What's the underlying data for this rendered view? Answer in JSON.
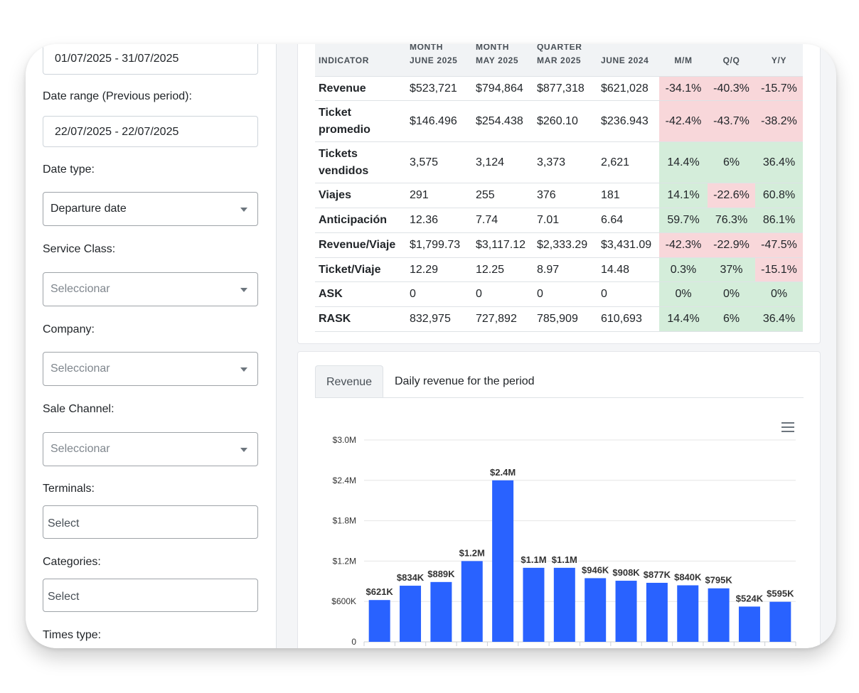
{
  "filters": {
    "current_range_value": "01/07/2025 - 31/07/2025",
    "previous_range_label": "Date range (Previous period):",
    "previous_range_value": "22/07/2025 - 22/07/2025",
    "date_type_label": "Date type:",
    "date_type_value": "Departure date",
    "service_class_label": "Service Class:",
    "service_class_placeholder": "Seleccionar",
    "company_label": "Company:",
    "company_placeholder": "Seleccionar",
    "sale_channel_label": "Sale Channel:",
    "sale_channel_placeholder": "Seleccionar",
    "terminals_label": "Terminals:",
    "terminals_placeholder": "Select",
    "categories_label": "Categories:",
    "categories_placeholder": "Select",
    "times_type_label": "Times type:"
  },
  "kpi_table": {
    "headers": [
      [
        "INDICATOR"
      ],
      [
        "MONTH",
        "JUNE 2025"
      ],
      [
        "MONTH",
        "MAY 2025"
      ],
      [
        "QUARTER",
        "MAR 2025"
      ],
      [
        "JUNE 2024"
      ],
      [
        "M/M"
      ],
      [
        "Q/Q"
      ],
      [
        "Y/Y"
      ]
    ],
    "rows": [
      {
        "indicator": "Revenue",
        "values": [
          "$523,721",
          "$794,864",
          "$877,318",
          "$621,028"
        ],
        "changes": [
          "-34.1%",
          "-40.3%",
          "-15.7%"
        ],
        "status": [
          "neg",
          "neg",
          "neg"
        ]
      },
      {
        "indicator": "Ticket promedio",
        "values": [
          "$146.496",
          "$254.438",
          "$260.10",
          "$236.943"
        ],
        "changes": [
          "-42.4%",
          "-43.7%",
          "-38.2%"
        ],
        "status": [
          "neg",
          "neg",
          "neg"
        ]
      },
      {
        "indicator": "Tickets vendidos",
        "values": [
          "3,575",
          "3,124",
          "3,373",
          "2,621"
        ],
        "changes": [
          "14.4%",
          "6%",
          "36.4%"
        ],
        "status": [
          "pos",
          "pos",
          "pos"
        ]
      },
      {
        "indicator": "Viajes",
        "values": [
          "291",
          "255",
          "376",
          "181"
        ],
        "changes": [
          "14.1%",
          "-22.6%",
          "60.8%"
        ],
        "status": [
          "pos",
          "neg",
          "pos"
        ]
      },
      {
        "indicator": "Anticipación",
        "values": [
          "12.36",
          "7.74",
          "7.01",
          "6.64"
        ],
        "changes": [
          "59.7%",
          "76.3%",
          "86.1%"
        ],
        "status": [
          "pos",
          "pos",
          "pos"
        ]
      },
      {
        "indicator": "Revenue/Viaje",
        "values": [
          "$1,799.73",
          "$3,117.12",
          "$2,333.29",
          "$3,431.09"
        ],
        "changes": [
          "-42.3%",
          "-22.9%",
          "-47.5%"
        ],
        "status": [
          "neg",
          "neg",
          "neg"
        ]
      },
      {
        "indicator": "Ticket/Viaje",
        "values": [
          "12.29",
          "12.25",
          "8.97",
          "14.48"
        ],
        "changes": [
          "0.3%",
          "37%",
          "-15.1%"
        ],
        "status": [
          "pos",
          "pos",
          "neg"
        ]
      },
      {
        "indicator": "ASK",
        "values": [
          "0",
          "0",
          "0",
          "0"
        ],
        "changes": [
          "0%",
          "0%",
          "0%"
        ],
        "status": [
          "pos",
          "pos",
          "pos"
        ]
      },
      {
        "indicator": "RASK",
        "values": [
          "832,975",
          "727,892",
          "785,909",
          "610,693"
        ],
        "changes": [
          "14.4%",
          "6%",
          "36.4%"
        ],
        "status": [
          "pos",
          "pos",
          "pos"
        ]
      }
    ],
    "colors": {
      "positive_bg": "#d4edda",
      "negative_bg": "#f8d7da"
    }
  },
  "chart_card": {
    "tab_active": "Revenue",
    "tab_other": "Daily revenue for the period",
    "menu_icon": "hamburger-menu-icon"
  },
  "chart_data": {
    "type": "bar",
    "title": "",
    "xlabel": "",
    "ylabel": "",
    "ylim": [
      0,
      3000000
    ],
    "y_ticks": [
      {
        "value": 0,
        "label": "0"
      },
      {
        "value": 600000,
        "label": "$600K"
      },
      {
        "value": 1200000,
        "label": "$1.2M"
      },
      {
        "value": 1800000,
        "label": "$1.8M"
      },
      {
        "value": 2400000,
        "label": "$2.4M"
      },
      {
        "value": 3000000,
        "label": "$3.0M"
      }
    ],
    "values": [
      621000,
      834000,
      889000,
      1200000,
      2400000,
      1100000,
      1100000,
      946000,
      908000,
      877000,
      840000,
      795000,
      524000,
      595000
    ],
    "data_labels": [
      "$621K",
      "$834K",
      "$889K",
      "$1.2M",
      "$2.4M",
      "$1.1M",
      "$1.1M",
      "$946K",
      "$908K",
      "$877K",
      "$840K",
      "$795K",
      "$524K",
      "$595K"
    ],
    "grid": true,
    "bar_color": "#2962ff"
  }
}
